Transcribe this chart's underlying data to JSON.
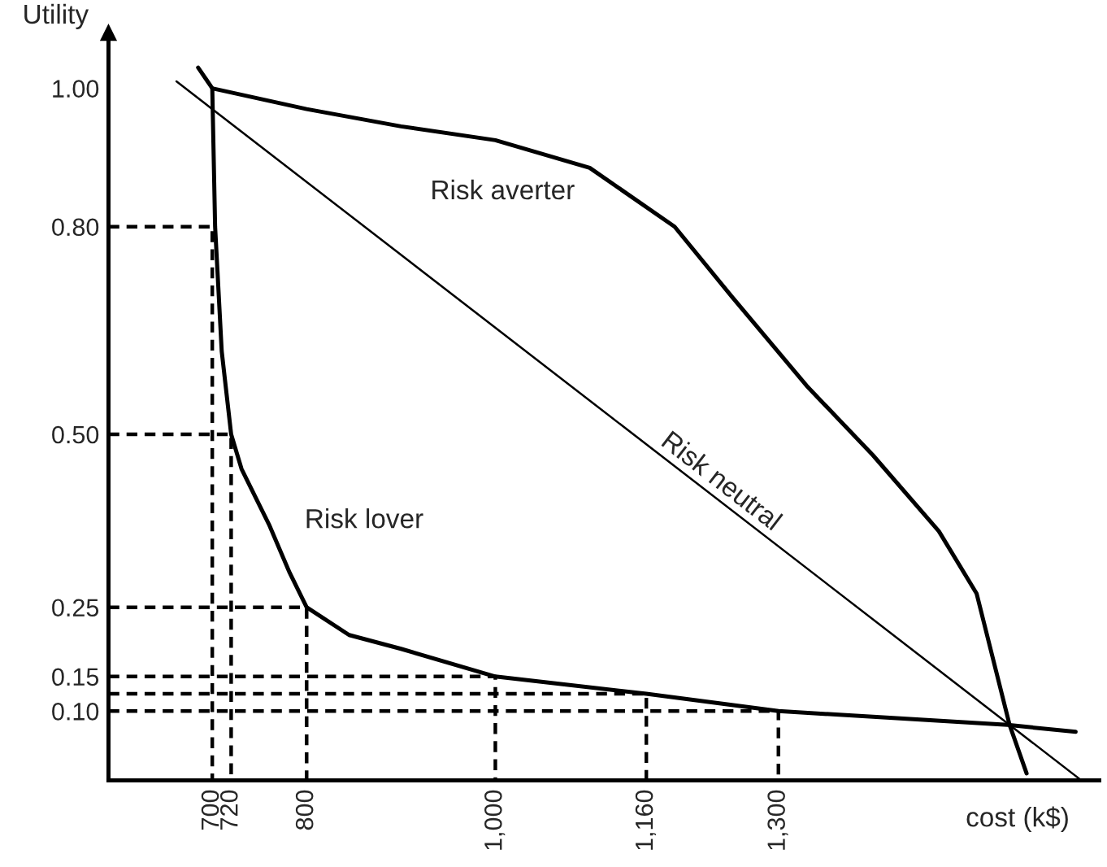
{
  "chart_data": {
    "type": "line",
    "xlabel": "cost (k$)",
    "ylabel": "Utility",
    "xlim": [
      590,
      1640
    ],
    "ylim": [
      0,
      1.08
    ],
    "xticks": [
      700,
      720,
      800,
      {
        "value": 1000,
        "label": "1,000"
      },
      {
        "value": 1160,
        "label": "1,160"
      },
      {
        "value": 1300,
        "label": "1,300"
      }
    ],
    "yticks": [
      {
        "value": 0.1,
        "label": "0.10"
      },
      {
        "value": 0.15,
        "label": "0.15"
      },
      {
        "value": 0.25,
        "label": "0.25"
      },
      {
        "value": 0.5,
        "label": "0.50"
      },
      {
        "value": 0.8,
        "label": "0.80"
      },
      {
        "value": 1.0,
        "label": "1.00"
      }
    ],
    "grid": false,
    "legend": false,
    "marker": "none",
    "series": [
      {
        "name": "Risk neutral",
        "color": "#000000",
        "line_style": "solid",
        "x": [
          662,
          1621
        ],
        "values": [
          1.01,
          0
        ]
      },
      {
        "name": "Risk averter",
        "color": "#000000",
        "line_style": "solid",
        "x": [
          700,
          800,
          900,
          1000,
          1100,
          1190,
          1250,
          1330,
          1400,
          1470,
          1510,
          1545,
          1563
        ],
        "values": [
          1.0,
          0.97,
          0.945,
          0.925,
          0.885,
          0.8,
          0.7,
          0.57,
          0.47,
          0.36,
          0.27,
          0.08,
          0.01
        ]
      },
      {
        "name": "Risk lover",
        "color": "#000000",
        "line_style": "solid",
        "x": [
          685,
          700,
          703,
          710,
          720,
          731,
          760,
          782,
          800,
          845,
          900,
          1000,
          1160,
          1300,
          1543,
          1615
        ],
        "values": [
          1.03,
          1.0,
          0.8,
          0.62,
          0.5,
          0.45,
          0.37,
          0.3,
          0.25,
          0.21,
          0.19,
          0.15,
          0.125,
          0.1,
          0.08,
          0.07
        ]
      },
      {
        "color": "#000000",
        "line_style": "dashed",
        "x": [
          590,
          700,
          700
        ],
        "values": [
          0.8,
          0.8,
          0
        ]
      },
      {
        "color": "#000000",
        "line_style": "dashed",
        "x": [
          590,
          720,
          720
        ],
        "values": [
          0.5,
          0.5,
          0
        ]
      },
      {
        "color": "#000000",
        "line_style": "dashed",
        "x": [
          590,
          800,
          800
        ],
        "values": [
          0.25,
          0.25,
          0
        ]
      },
      {
        "color": "#000000",
        "line_style": "dashed",
        "x": [
          590,
          1000,
          1000
        ],
        "values": [
          0.15,
          0.15,
          0
        ]
      },
      {
        "color": "#000000",
        "line_style": "dashed",
        "x": [
          590,
          1160,
          1160
        ],
        "values": [
          0.125,
          0.125,
          0
        ]
      },
      {
        "color": "#000000",
        "line_style": "dashed",
        "x": [
          590,
          1300,
          1300
        ],
        "values": [
          0.1,
          0.1,
          0
        ]
      }
    ]
  }
}
